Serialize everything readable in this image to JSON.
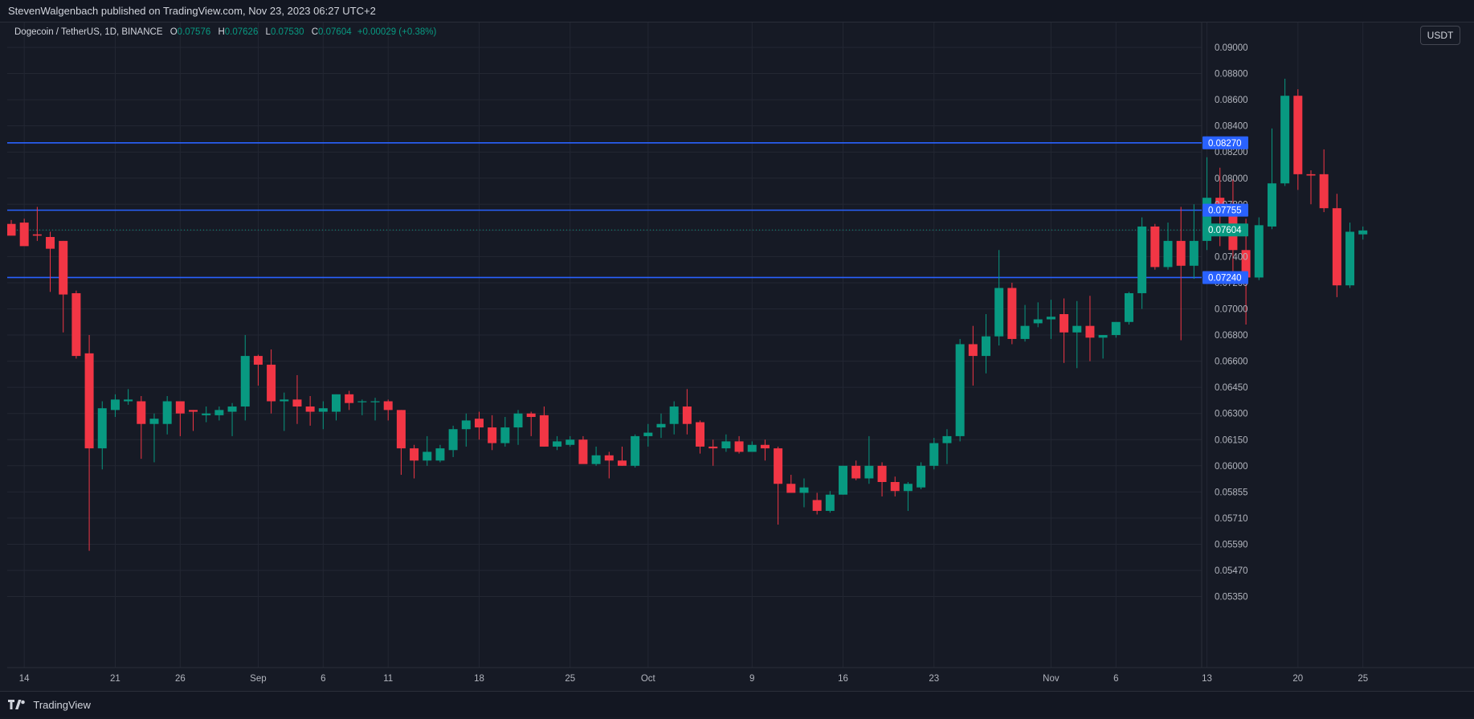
{
  "header": {
    "publisher_line": "StevenWalgenbach published on TradingView.com, Nov 23, 2023 06:27 UTC+2"
  },
  "legend": {
    "symbol": "Dogecoin / TetherUS, 1D, BINANCE",
    "open_label": "O",
    "open": "0.07576",
    "high_label": "H",
    "high": "0.07626",
    "low_label": "L",
    "low": "0.07530",
    "close_label": "C",
    "close": "0.07604",
    "change": "+0.00029 (+0.38%)"
  },
  "currency_button": "USDT",
  "footer": {
    "brand": "TradingView"
  },
  "colors": {
    "background": "#161a25",
    "grid": "#232733",
    "up": "#089981",
    "down": "#f23645",
    "hline": "#2962ff",
    "text": "#b2b5be"
  },
  "chart_data": {
    "type": "candlestick",
    "x_ticks": [
      {
        "label": "14",
        "index": 1
      },
      {
        "label": "21",
        "index": 8
      },
      {
        "label": "26",
        "index": 13
      },
      {
        "label": "Sep",
        "index": 19
      },
      {
        "label": "6",
        "index": 24
      },
      {
        "label": "11",
        "index": 29
      },
      {
        "label": "18",
        "index": 36
      },
      {
        "label": "25",
        "index": 43
      },
      {
        "label": "Oct",
        "index": 49
      },
      {
        "label": "9",
        "index": 57
      },
      {
        "label": "16",
        "index": 64
      },
      {
        "label": "23",
        "index": 71
      },
      {
        "label": "Nov",
        "index": 80
      },
      {
        "label": "6",
        "index": 85
      },
      {
        "label": "13",
        "index": 92
      },
      {
        "label": "20",
        "index": 99
      },
      {
        "label": "25",
        "index": 104
      }
    ],
    "y_ticks": [
      "0.09000",
      "0.08800",
      "0.08600",
      "0.08400",
      "0.08200",
      "0.08000",
      "0.07800",
      "0.07600",
      "0.07400",
      "0.07200",
      "0.07000",
      "0.06800",
      "0.06600",
      "0.06450",
      "0.06300",
      "0.06150",
      "0.06000",
      "0.05855",
      "0.05710",
      "0.05590",
      "0.05470",
      "0.05350"
    ],
    "horizontal_lines": [
      {
        "price": "0.08270",
        "value": 0.0827
      },
      {
        "price": "0.07755",
        "value": 0.07755
      },
      {
        "price": "0.07240",
        "value": 0.0724
      }
    ],
    "last_price": {
      "label": "0.07604",
      "value": 0.07604
    },
    "candles": [
      [
        0.0765,
        0.0768,
        0.0759,
        0.0756
      ],
      [
        0.0766,
        0.0769,
        0.0749,
        0.0748
      ],
      [
        0.0757,
        0.0778,
        0.0752,
        0.0756
      ],
      [
        0.0755,
        0.0759,
        0.0713,
        0.0746
      ],
      [
        0.0752,
        0.0752,
        0.0682,
        0.0711
      ],
      [
        0.0712,
        0.0714,
        0.0662,
        0.0664
      ],
      [
        0.0666,
        0.068,
        0.0556,
        0.061
      ],
      [
        0.061,
        0.0637,
        0.0598,
        0.0633
      ],
      [
        0.0632,
        0.0641,
        0.0628,
        0.0638
      ],
      [
        0.0637,
        0.0644,
        0.0635,
        0.0638
      ],
      [
        0.0637,
        0.064,
        0.0604,
        0.0624
      ],
      [
        0.0624,
        0.063,
        0.0602,
        0.0627
      ],
      [
        0.0624,
        0.064,
        0.0618,
        0.0637
      ],
      [
        0.0637,
        0.0637,
        0.0617,
        0.063
      ],
      [
        0.0632,
        0.0632,
        0.062,
        0.0631
      ],
      [
        0.0629,
        0.0634,
        0.0625,
        0.063
      ],
      [
        0.0629,
        0.0634,
        0.0626,
        0.0632
      ],
      [
        0.0631,
        0.0636,
        0.0617,
        0.0634
      ],
      [
        0.0634,
        0.068,
        0.0626,
        0.0664
      ],
      [
        0.0664,
        0.0665,
        0.0646,
        0.0658
      ],
      [
        0.0658,
        0.0669,
        0.063,
        0.0637
      ],
      [
        0.0637,
        0.0642,
        0.062,
        0.0638
      ],
      [
        0.0638,
        0.0652,
        0.0624,
        0.0634
      ],
      [
        0.0634,
        0.064,
        0.0623,
        0.0631
      ],
      [
        0.0631,
        0.0637,
        0.0621,
        0.0633
      ],
      [
        0.0631,
        0.0641,
        0.0626,
        0.0641
      ],
      [
        0.0641,
        0.0643,
        0.0632,
        0.0636
      ],
      [
        0.0637,
        0.0638,
        0.0629,
        0.0637
      ],
      [
        0.0637,
        0.0639,
        0.0626,
        0.0637
      ],
      [
        0.0637,
        0.0638,
        0.0626,
        0.0632
      ],
      [
        0.0632,
        0.0632,
        0.0595,
        0.061
      ],
      [
        0.061,
        0.0612,
        0.0593,
        0.0603
      ],
      [
        0.0603,
        0.0617,
        0.06,
        0.0608
      ],
      [
        0.0603,
        0.0612,
        0.0602,
        0.061
      ],
      [
        0.0609,
        0.0623,
        0.0605,
        0.0621
      ],
      [
        0.0621,
        0.063,
        0.0611,
        0.0626
      ],
      [
        0.0627,
        0.0631,
        0.0615,
        0.0622
      ],
      [
        0.0622,
        0.0629,
        0.0609,
        0.0613
      ],
      [
        0.0613,
        0.0628,
        0.0611,
        0.0622
      ],
      [
        0.0622,
        0.0632,
        0.0612,
        0.063
      ],
      [
        0.063,
        0.0631,
        0.0617,
        0.0628
      ],
      [
        0.0629,
        0.0634,
        0.0611,
        0.0611
      ],
      [
        0.0611,
        0.0617,
        0.0609,
        0.0614
      ],
      [
        0.0612,
        0.0617,
        0.0611,
        0.0615
      ],
      [
        0.0615,
        0.0617,
        0.0603,
        0.0601
      ],
      [
        0.0601,
        0.0611,
        0.06,
        0.0606
      ],
      [
        0.0606,
        0.0608,
        0.0593,
        0.0603
      ],
      [
        0.0603,
        0.0611,
        0.06,
        0.06
      ],
      [
        0.06,
        0.0618,
        0.0599,
        0.0617
      ],
      [
        0.0617,
        0.0624,
        0.0611,
        0.0619
      ],
      [
        0.0622,
        0.063,
        0.0616,
        0.0624
      ],
      [
        0.0624,
        0.0637,
        0.0618,
        0.0634
      ],
      [
        0.0634,
        0.0644,
        0.0618,
        0.0624
      ],
      [
        0.0625,
        0.0626,
        0.0607,
        0.0611
      ],
      [
        0.0611,
        0.0615,
        0.06,
        0.061
      ],
      [
        0.061,
        0.0618,
        0.0608,
        0.0614
      ],
      [
        0.0614,
        0.0617,
        0.0607,
        0.0608
      ],
      [
        0.0608,
        0.0614,
        0.0609,
        0.0612
      ],
      [
        0.0612,
        0.0615,
        0.0603,
        0.061
      ],
      [
        0.061,
        0.0611,
        0.0568,
        0.059
      ],
      [
        0.059,
        0.0595,
        0.0585,
        0.0585
      ],
      [
        0.0585,
        0.0593,
        0.0577,
        0.0588
      ],
      [
        0.0581,
        0.0585,
        0.0573,
        0.0575
      ],
      [
        0.0575,
        0.0586,
        0.0574,
        0.0584
      ],
      [
        0.0584,
        0.06,
        0.0584,
        0.06
      ],
      [
        0.06,
        0.0603,
        0.0592,
        0.0593
      ],
      [
        0.0593,
        0.0617,
        0.059,
        0.06
      ],
      [
        0.06,
        0.0602,
        0.0583,
        0.0591
      ],
      [
        0.0591,
        0.0594,
        0.0583,
        0.0586
      ],
      [
        0.0586,
        0.0591,
        0.0575,
        0.059
      ],
      [
        0.0588,
        0.0602,
        0.0587,
        0.06
      ],
      [
        0.06,
        0.0616,
        0.0598,
        0.0613
      ],
      [
        0.0613,
        0.0621,
        0.0601,
        0.0617
      ],
      [
        0.0617,
        0.0677,
        0.0614,
        0.0673
      ],
      [
        0.0673,
        0.0687,
        0.0646,
        0.0664
      ],
      [
        0.0664,
        0.0696,
        0.0653,
        0.0679
      ],
      [
        0.0679,
        0.0745,
        0.0672,
        0.0716
      ],
      [
        0.0716,
        0.072,
        0.0673,
        0.0677
      ],
      [
        0.0677,
        0.0703,
        0.0675,
        0.0687
      ],
      [
        0.0689,
        0.0705,
        0.0686,
        0.0692
      ],
      [
        0.0692,
        0.0707,
        0.0677,
        0.0694
      ],
      [
        0.0696,
        0.0708,
        0.0659,
        0.0682
      ],
      [
        0.0682,
        0.0706,
        0.0656,
        0.0687
      ],
      [
        0.0687,
        0.071,
        0.066,
        0.0678
      ],
      [
        0.0678,
        0.068,
        0.0662,
        0.068
      ],
      [
        0.068,
        0.0689,
        0.0678,
        0.069
      ],
      [
        0.069,
        0.0713,
        0.0688,
        0.0712
      ],
      [
        0.0712,
        0.077,
        0.07,
        0.0763
      ],
      [
        0.0763,
        0.0765,
        0.073,
        0.0732
      ],
      [
        0.0732,
        0.0766,
        0.073,
        0.0752
      ],
      [
        0.0752,
        0.0778,
        0.0676,
        0.0733
      ],
      [
        0.0733,
        0.078,
        0.0723,
        0.0752
      ],
      [
        0.0752,
        0.0816,
        0.0745,
        0.0785
      ],
      [
        0.0785,
        0.0808,
        0.0748,
        0.0779
      ],
      [
        0.0779,
        0.0799,
        0.0722,
        0.0745
      ],
      [
        0.0745,
        0.0769,
        0.0688,
        0.0724
      ],
      [
        0.0724,
        0.077,
        0.0722,
        0.0764
      ],
      [
        0.0763,
        0.0838,
        0.0761,
        0.0796
      ],
      [
        0.0796,
        0.0876,
        0.0794,
        0.0863
      ],
      [
        0.0863,
        0.0868,
        0.0791,
        0.0803
      ],
      [
        0.0803,
        0.0806,
        0.078,
        0.0802
      ],
      [
        0.0803,
        0.0822,
        0.0774,
        0.0777
      ],
      [
        0.0777,
        0.0788,
        0.0709,
        0.0718
      ],
      [
        0.0718,
        0.0766,
        0.0716,
        0.0759
      ],
      [
        0.0757,
        0.0763,
        0.0753,
        0.076
      ]
    ]
  }
}
